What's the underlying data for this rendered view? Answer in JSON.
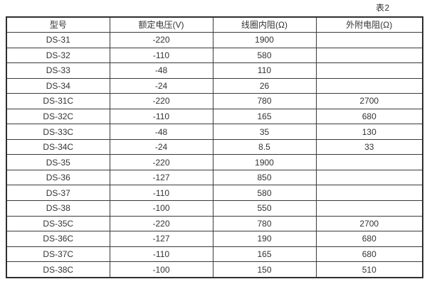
{
  "page": {
    "caption": "表2"
  },
  "table": {
    "headers": [
      "型号",
      "额定电压(V)",
      "线圈内阻(Ω)",
      "外附电阻(Ω)"
    ],
    "rows": [
      [
        "DS-31",
        "-220",
        "1900",
        ""
      ],
      [
        "DS-32",
        "-110",
        "580",
        ""
      ],
      [
        "DS-33",
        "-48",
        "110",
        ""
      ],
      [
        "DS-34",
        "-24",
        "26",
        ""
      ],
      [
        "DS-31C",
        "-220",
        "780",
        "2700"
      ],
      [
        "DS-32C",
        "-110",
        "165",
        "680"
      ],
      [
        "DS-33C",
        "-48",
        "35",
        "130"
      ],
      [
        "DS-34C",
        "-24",
        "8.5",
        "33"
      ],
      [
        "DS-35",
        "-220",
        "1900",
        ""
      ],
      [
        "DS-36",
        "-127",
        "850",
        ""
      ],
      [
        "DS-37",
        "-110",
        "580",
        ""
      ],
      [
        "DS-38",
        "-100",
        "550",
        ""
      ],
      [
        "DS-35C",
        "-220",
        "780",
        "2700"
      ],
      [
        "DS-36C",
        "-127",
        "190",
        "680"
      ],
      [
        "DS-37C",
        "-110",
        "165",
        "680"
      ],
      [
        "DS-38C",
        "-100",
        "150",
        "510"
      ]
    ],
    "colors": {
      "border": "#3a3a3a",
      "text": "#333333",
      "background": "#ffffff"
    }
  }
}
